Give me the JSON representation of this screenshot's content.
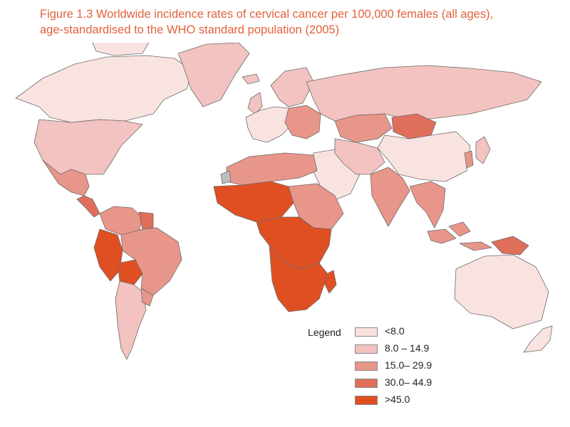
{
  "title": {
    "line1": "Figure 1.3  Worldwide incidence rates of cervical cancer per 100,000 females (all ages),",
    "line2": "age-standardised to the WHO standard population (2005)"
  },
  "legend": {
    "title": "Legend",
    "items": [
      {
        "label": "<8.0",
        "color": "#f9e3e1"
      },
      {
        "label": "8.0 – 14.9",
        "color": "#f2c3c0"
      },
      {
        "label": "15.0– 29.9",
        "color": "#e9968a"
      },
      {
        "label": "30.0– 44.9",
        "color": "#df6f5a"
      },
      {
        "label": ">45.0",
        "color": "#e04f22"
      }
    ]
  },
  "colors": {
    "title": "#e2623d",
    "no_data": "#bdbdbd",
    "border": "#6b6b6b"
  },
  "regions": [
    {
      "name": "canada-arctic",
      "class": 0
    },
    {
      "name": "greenland",
      "class": 1
    },
    {
      "name": "usa",
      "class": 1
    },
    {
      "name": "mexico",
      "class": 2
    },
    {
      "name": "central-america",
      "class": 3
    },
    {
      "name": "colombia-venezuela",
      "class": 2
    },
    {
      "name": "guianas",
      "class": 3
    },
    {
      "name": "peru-ecuador",
      "class": 4
    },
    {
      "name": "bolivia",
      "class": 4
    },
    {
      "name": "brazil",
      "class": 2
    },
    {
      "name": "chile-argentina",
      "class": 1
    },
    {
      "name": "paraguay-uruguay",
      "class": 2
    },
    {
      "name": "iceland",
      "class": 1
    },
    {
      "name": "uk-ireland",
      "class": 1
    },
    {
      "name": "scandinavia",
      "class": 1
    },
    {
      "name": "western-europe",
      "class": 0
    },
    {
      "name": "eastern-europe",
      "class": 2
    },
    {
      "name": "russia",
      "class": 1
    },
    {
      "name": "kazakhstan-central-asia",
      "class": 2
    },
    {
      "name": "mongolia",
      "class": 3
    },
    {
      "name": "china",
      "class": 0
    },
    {
      "name": "middle-east",
      "class": 0
    },
    {
      "name": "iran-afghanistan",
      "class": 1
    },
    {
      "name": "india",
      "class": 2
    },
    {
      "name": "indochina",
      "class": 2
    },
    {
      "name": "japan",
      "class": 1
    },
    {
      "name": "korea",
      "class": 2
    },
    {
      "name": "indonesia",
      "class": 2
    },
    {
      "name": "png",
      "class": 3
    },
    {
      "name": "australia",
      "class": 0
    },
    {
      "name": "new-zealand",
      "class": 0
    },
    {
      "name": "north-africa",
      "class": 2
    },
    {
      "name": "west-africa",
      "class": 4
    },
    {
      "name": "sudan-ethiopia",
      "class": 2
    },
    {
      "name": "central-east-africa",
      "class": 4
    },
    {
      "name": "southern-africa",
      "class": 4
    },
    {
      "name": "madagascar",
      "class": 4
    },
    {
      "name": "western-sahara",
      "class": 5
    }
  ]
}
